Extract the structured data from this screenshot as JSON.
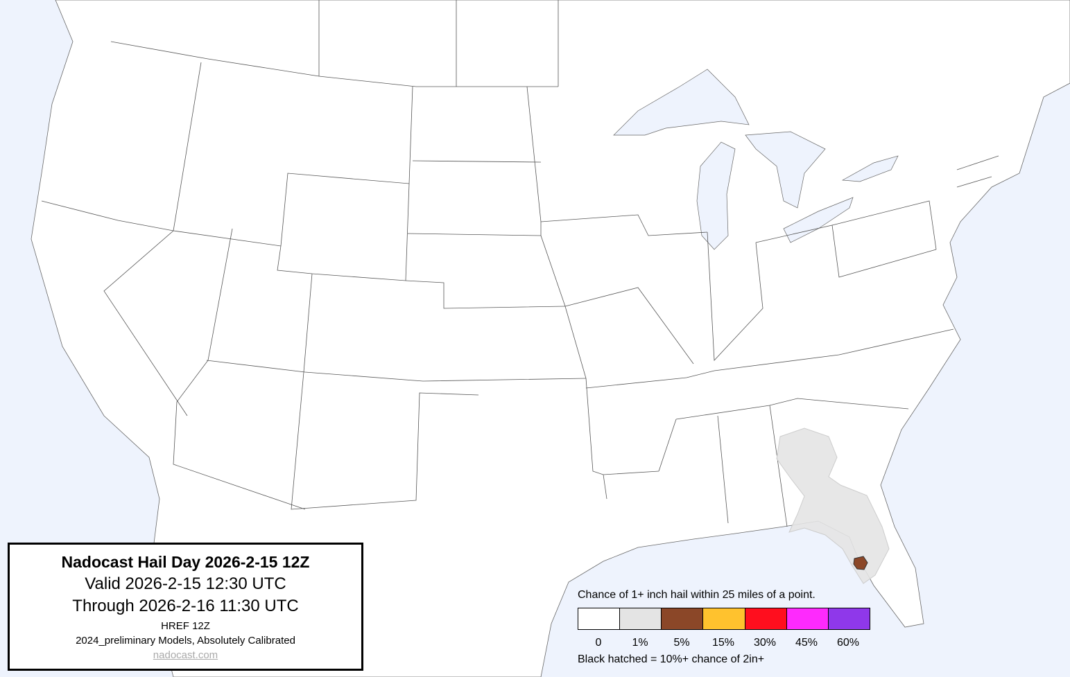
{
  "title_box": {
    "title": "Nadocast Hail Day 2026-2-15 12Z",
    "valid": "Valid 2026-2-15 12:30 UTC",
    "through": "Through 2026-2-16 11:30 UTC",
    "model": "HREF 12Z",
    "calibration": "2024_preliminary Models, Absolutely Calibrated",
    "link": "nadocast.com"
  },
  "legend": {
    "title": "Chance of 1+ inch hail within 25 miles of a point.",
    "bins": [
      {
        "label": "0",
        "color": "#ffffff"
      },
      {
        "label": "1%",
        "color": "#e4e4e4"
      },
      {
        "label": "5%",
        "color": "#8b4728"
      },
      {
        "label": "15%",
        "color": "#ffc22e"
      },
      {
        "label": "30%",
        "color": "#ff0e1e"
      },
      {
        "label": "45%",
        "color": "#fe2afd"
      },
      {
        "label": "60%",
        "color": "#8f38ea"
      }
    ],
    "note": "Black hatched = 10%+ chance of 2in+"
  },
  "map": {
    "ocean_color": "#eef3fd",
    "land_color": "#ffffff",
    "forecast_areas": [
      {
        "level": "1%",
        "region": "southern Georgia and Florida peninsula"
      },
      {
        "level": "5%",
        "region": "Tampa Bay area, Florida"
      }
    ]
  }
}
